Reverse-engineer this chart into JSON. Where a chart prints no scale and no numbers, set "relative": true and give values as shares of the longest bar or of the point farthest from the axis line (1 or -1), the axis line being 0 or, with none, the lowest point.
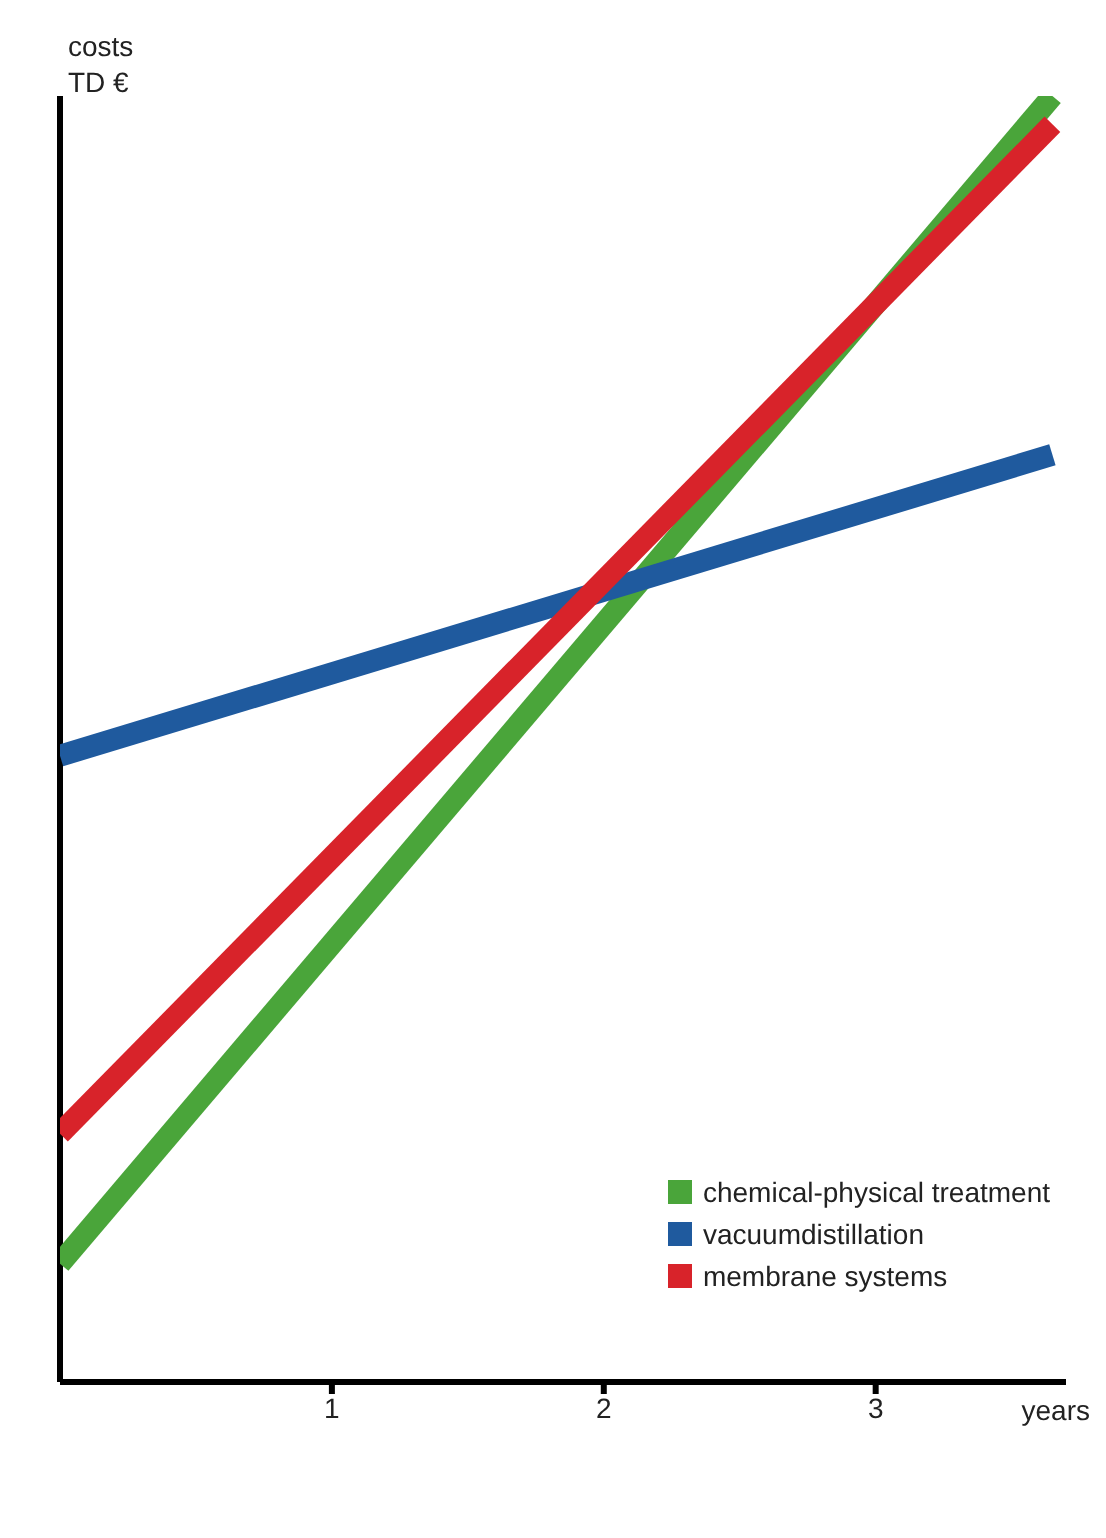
{
  "chart_data": {
    "type": "line",
    "relative": true,
    "xlabel": "years",
    "ylabel": "costs TD €",
    "xlim": [
      0,
      3.7
    ],
    "xticks": [
      1,
      2,
      3
    ],
    "legend": "bottom right",
    "grid": false,
    "marker": "none",
    "line_style": "solid",
    "x": [
      0,
      3.65
    ],
    "series": [
      {
        "name": "chemical-physical treatment",
        "color": "#4aa53a",
        "values": [
          0.092,
          1
        ]
      },
      {
        "name": "vacuumdistillation",
        "color": "#1f5a9e",
        "values": [
          0.487,
          0.721
        ]
      },
      {
        "name": "membrane systems",
        "color": "#d8232a",
        "values": [
          0.193,
          0.978
        ]
      }
    ]
  }
}
